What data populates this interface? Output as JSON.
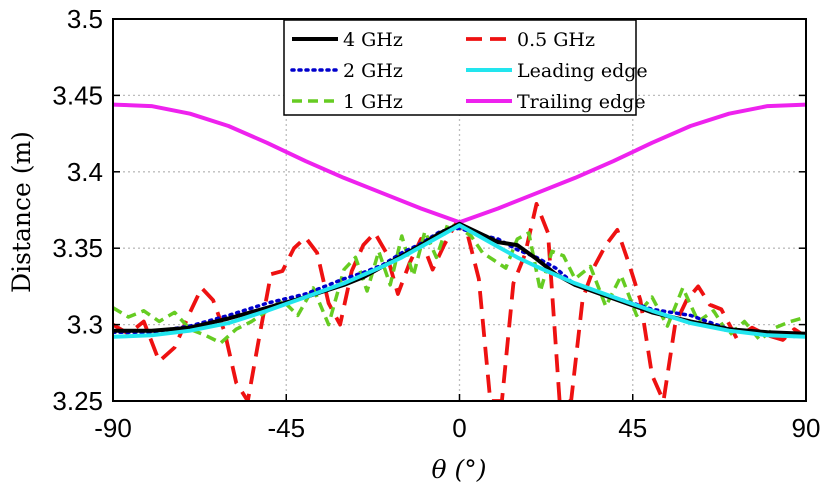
{
  "chart_data": {
    "type": "line",
    "title": "",
    "xlabel": "θ (°)",
    "ylabel": "Distance (m)",
    "xlim": [
      -90,
      90
    ],
    "ylim": [
      3.25,
      3.5
    ],
    "grid": true,
    "legend_placement": "top-center",
    "xticks": [
      -90,
      -45,
      0,
      45,
      90
    ],
    "xtick_labels": [
      "-90",
      "-45",
      "0",
      "45",
      "90"
    ],
    "yticks": [
      3.25,
      3.3,
      3.35,
      3.4,
      3.45,
      3.5
    ],
    "ytick_labels": [
      "3.25",
      "3.3",
      "3.35",
      "3.4",
      "3.45",
      "3.5"
    ],
    "series": [
      {
        "name": "4 GHz",
        "color": "#000000",
        "dash": "solid",
        "x": [
          -90,
          -80,
          -70,
          -60,
          -50,
          -40,
          -30,
          -25,
          -20,
          -15,
          -10,
          -5,
          0,
          5,
          10,
          15,
          20,
          25,
          30,
          40,
          50,
          60,
          70,
          80,
          90
        ],
        "y": [
          3.296,
          3.296,
          3.298,
          3.304,
          3.311,
          3.318,
          3.326,
          3.331,
          3.338,
          3.345,
          3.352,
          3.36,
          3.366,
          3.36,
          3.354,
          3.352,
          3.343,
          3.333,
          3.326,
          3.317,
          3.308,
          3.302,
          3.297,
          3.295,
          3.294
        ]
      },
      {
        "name": "2 GHz",
        "color": "#0000cc",
        "dash": "dotted",
        "x": [
          -90,
          -80,
          -70,
          -60,
          -50,
          -40,
          -30,
          -25,
          -20,
          -15,
          -10,
          -5,
          0,
          5,
          10,
          15,
          20,
          25,
          30,
          40,
          50,
          60,
          70,
          80,
          90
        ],
        "y": [
          3.295,
          3.295,
          3.299,
          3.306,
          3.314,
          3.32,
          3.33,
          3.334,
          3.339,
          3.347,
          3.353,
          3.361,
          3.363,
          3.359,
          3.356,
          3.349,
          3.344,
          3.337,
          3.326,
          3.318,
          3.31,
          3.306,
          3.297,
          3.293,
          3.292
        ]
      },
      {
        "name": "1 GHz",
        "color": "#66cc22",
        "dash": "dashed",
        "x": [
          -90,
          -86,
          -82,
          -78,
          -74,
          -70,
          -66,
          -62,
          -58,
          -54,
          -50,
          -46,
          -42,
          -38,
          -34,
          -30,
          -27,
          -24,
          -21,
          -18,
          -15,
          -12,
          -9,
          -6,
          -3,
          0,
          3,
          6,
          9,
          12,
          15,
          18,
          21,
          24,
          27,
          30,
          34,
          38,
          42,
          46,
          50,
          54,
          58,
          62,
          66,
          70,
          74,
          78,
          82,
          86,
          90
        ],
        "y": [
          3.311,
          3.305,
          3.309,
          3.302,
          3.308,
          3.297,
          3.293,
          3.288,
          3.297,
          3.302,
          3.309,
          3.316,
          3.306,
          3.324,
          3.3,
          3.336,
          3.344,
          3.322,
          3.348,
          3.326,
          3.358,
          3.332,
          3.361,
          3.344,
          3.366,
          3.363,
          3.358,
          3.347,
          3.342,
          3.337,
          3.356,
          3.36,
          3.322,
          3.348,
          3.345,
          3.33,
          3.338,
          3.312,
          3.332,
          3.306,
          3.318,
          3.299,
          3.324,
          3.302,
          3.309,
          3.293,
          3.302,
          3.29,
          3.298,
          3.302,
          3.305
        ]
      },
      {
        "name": "0.5 GHz",
        "color": "#ee1111",
        "dash": "longdash",
        "x": [
          -90,
          -86,
          -82,
          -78,
          -74,
          -70,
          -67,
          -64,
          -61,
          -58,
          -55,
          -52,
          -49,
          -46,
          -43,
          -40,
          -37,
          -34,
          -31,
          -28,
          -25,
          -22,
          -19,
          -16,
          -13,
          -10,
          -7,
          -4,
          -1,
          2,
          5,
          8,
          11,
          14,
          17,
          20,
          23,
          26,
          29,
          32,
          35,
          38,
          41,
          44,
          47,
          50,
          53,
          56,
          59,
          62,
          65,
          68,
          72,
          76,
          80,
          84,
          87,
          90
        ],
        "y": [
          3.3,
          3.294,
          3.302,
          3.276,
          3.285,
          3.308,
          3.324,
          3.316,
          3.295,
          3.262,
          3.25,
          3.292,
          3.333,
          3.335,
          3.35,
          3.357,
          3.347,
          3.314,
          3.3,
          3.335,
          3.352,
          3.36,
          3.347,
          3.32,
          3.34,
          3.356,
          3.336,
          3.352,
          3.366,
          3.36,
          3.33,
          3.25,
          3.25,
          3.327,
          3.346,
          3.379,
          3.36,
          3.25,
          3.25,
          3.317,
          3.338,
          3.352,
          3.362,
          3.34,
          3.316,
          3.267,
          3.25,
          3.3,
          3.316,
          3.325,
          3.313,
          3.31,
          3.291,
          3.298,
          3.293,
          3.29,
          3.297,
          3.292
        ]
      },
      {
        "name": "Leading edge",
        "color": "#22e5ee",
        "dash": "solid",
        "x": [
          -90,
          -80,
          -70,
          -60,
          -50,
          -40,
          -30,
          -20,
          -15,
          -10,
          -5,
          0,
          5,
          10,
          15,
          20,
          30,
          40,
          50,
          60,
          70,
          80,
          90
        ],
        "y": [
          3.292,
          3.293,
          3.296,
          3.301,
          3.309,
          3.318,
          3.327,
          3.338,
          3.344,
          3.351,
          3.358,
          3.365,
          3.358,
          3.351,
          3.344,
          3.338,
          3.327,
          3.318,
          3.309,
          3.301,
          3.296,
          3.293,
          3.292
        ]
      },
      {
        "name": "Trailing edge",
        "color": "#ee22ee",
        "dash": "solid",
        "x": [
          -90,
          -80,
          -70,
          -60,
          -50,
          -40,
          -30,
          -20,
          -10,
          0,
          10,
          20,
          30,
          40,
          50,
          60,
          70,
          80,
          90
        ],
        "y": [
          3.444,
          3.443,
          3.438,
          3.43,
          3.419,
          3.407,
          3.396,
          3.386,
          3.376,
          3.367,
          3.376,
          3.386,
          3.396,
          3.407,
          3.419,
          3.43,
          3.438,
          3.443,
          3.444
        ]
      }
    ],
    "legend_order": [
      "4 GHz",
      "0.5 GHz",
      "2 GHz",
      "Leading edge",
      "1 GHz",
      "Trailing edge"
    ]
  }
}
